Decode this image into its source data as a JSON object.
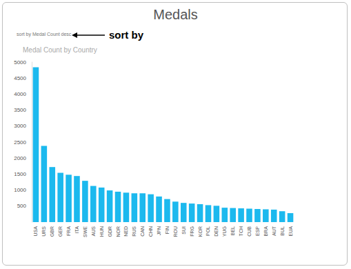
{
  "chart_data": {
    "type": "bar",
    "title": "Medals",
    "subtitle": "Medal Count by Country",
    "annotations": [
      "sort by Medal Count desc",
      "sort by"
    ],
    "categories": [
      "USA",
      "URS",
      "GBR",
      "GER",
      "FRA",
      "ITA",
      "SWE",
      "AUS",
      "HUN",
      "GDR",
      "NOR",
      "NED",
      "RUS",
      "CAN",
      "CHN",
      "JPN",
      "FIN",
      "ROU",
      "SUI",
      "FRG",
      "KOR",
      "POL",
      "DEN",
      "YUG",
      "BEL",
      "TCH",
      "CUB",
      "ESP",
      "BRA",
      "AUT",
      "BUL",
      "EUA"
    ],
    "values": [
      4840,
      2380,
      1720,
      1540,
      1480,
      1440,
      1290,
      1130,
      1080,
      990,
      950,
      920,
      900,
      900,
      870,
      800,
      720,
      640,
      600,
      580,
      560,
      530,
      510,
      450,
      440,
      430,
      420,
      410,
      400,
      390,
      340,
      280
    ],
    "color": "#1cb9ee",
    "ylim": [
      0,
      5000
    ],
    "yticks": [
      500,
      1000,
      1500,
      2000,
      2500,
      3000,
      3500,
      4000,
      4500,
      5000
    ],
    "grid": false
  }
}
